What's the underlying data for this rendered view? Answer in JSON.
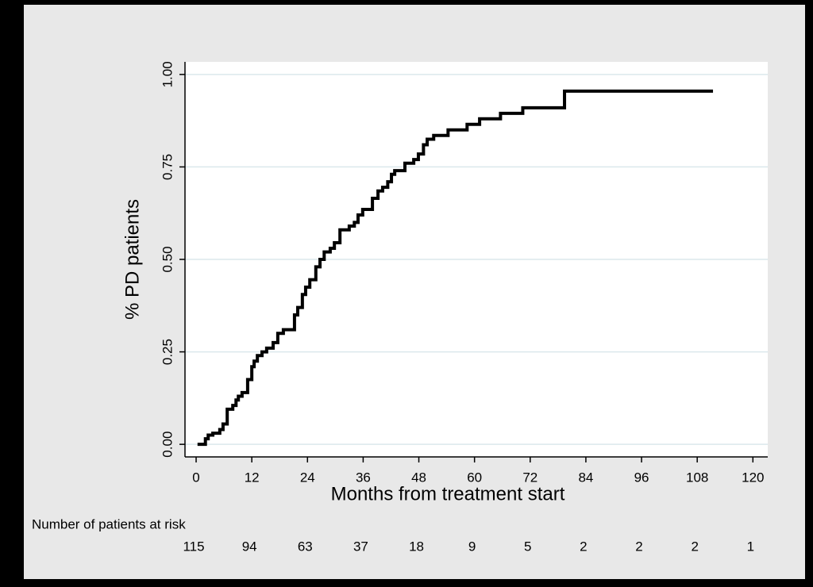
{
  "chart_data": {
    "type": "line",
    "step": "post",
    "color": "#000000",
    "ylabel": "% PD patients",
    "xlabel": "Months from treatment start",
    "x": [
      0.3,
      2,
      2.6,
      3.6,
      5.1,
      5.8,
      6.7,
      7.9,
      8.6,
      9.1,
      9.9,
      11.1,
      12,
      12.5,
      13.2,
      14.2,
      15.2,
      16.6,
      17.6,
      18.8,
      21.2,
      21.9,
      22.9,
      23.6,
      24.5,
      25.8,
      26.7,
      27.6,
      28.9,
      29.8,
      31,
      33,
      34.1,
      34.9,
      35.9,
      38,
      39.2,
      40.2,
      41.3,
      42.1,
      42.8,
      45,
      46.9,
      47.9,
      49,
      49.8,
      51.2,
      54.3,
      58.4,
      61.1,
      65.6,
      70.4,
      79.4,
      111.4
    ],
    "values": [
      0,
      0.015,
      0.025,
      0.03,
      0.04,
      0.055,
      0.095,
      0.105,
      0.12,
      0.13,
      0.14,
      0.175,
      0.21,
      0.225,
      0.24,
      0.25,
      0.26,
      0.275,
      0.3,
      0.31,
      0.35,
      0.37,
      0.405,
      0.425,
      0.445,
      0.48,
      0.5,
      0.52,
      0.53,
      0.545,
      0.58,
      0.59,
      0.6,
      0.62,
      0.635,
      0.665,
      0.685,
      0.695,
      0.71,
      0.73,
      0.74,
      0.76,
      0.77,
      0.785,
      0.81,
      0.825,
      0.835,
      0.85,
      0.865,
      0.88,
      0.895,
      0.91,
      0.955,
      0.955
    ],
    "xlim": [
      -2.4,
      123.2
    ],
    "ylim": [
      -0.034,
      1.034
    ],
    "xticks": [
      0,
      12,
      24,
      36,
      48,
      60,
      72,
      84,
      96,
      108,
      120
    ],
    "yticks": [
      {
        "value": 0,
        "label": "0.00"
      },
      {
        "value": 0.25,
        "label": "0.25"
      },
      {
        "value": 0.5,
        "label": "0.50"
      },
      {
        "value": 0.75,
        "label": "0.75"
      },
      {
        "value": 1,
        "label": "1.00"
      }
    ],
    "grid": true,
    "risk_table": {
      "label": "Number of patients at risk",
      "values": [
        115,
        94,
        63,
        37,
        18,
        9,
        5,
        2,
        2,
        2,
        1
      ]
    }
  }
}
